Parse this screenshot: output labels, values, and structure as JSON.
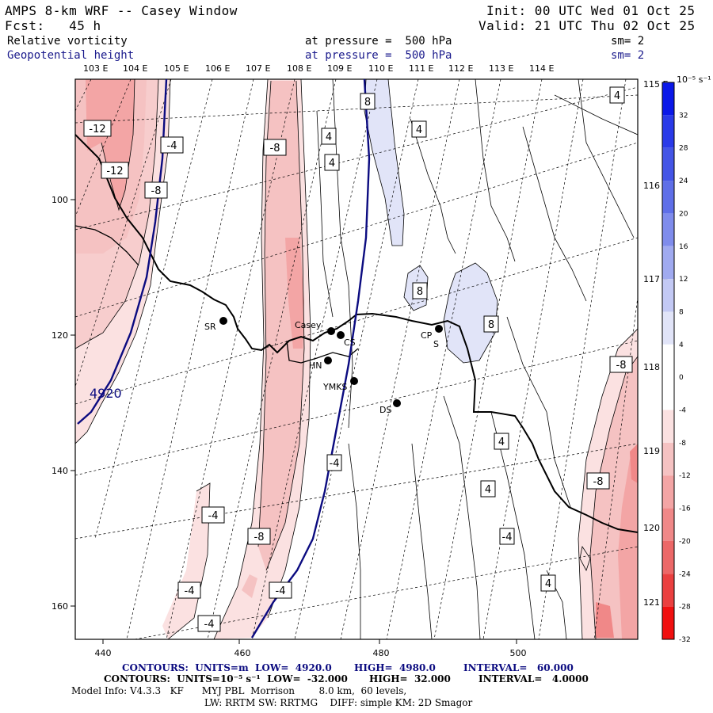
{
  "header": {
    "title": "AMPS 8-km WRF -- Casey Window",
    "init": "Init: 00 UTC Wed 01 Oct 25",
    "fcst": "Fcst:   45 h",
    "valid": "Valid: 21 UTC Thu 02 Oct 25",
    "field1_name": "Relative vorticity",
    "field1_level": "at pressure =  500 hPa",
    "field1_sm": "sm= 2",
    "field2_name": "Geopotential height",
    "field2_level": "at pressure =  500 hPa",
    "field2_sm": "sm= 2"
  },
  "map": {
    "top_longitudes": [
      "103 E",
      "104 E",
      "105 E",
      "106 E",
      "107 E",
      "108 E",
      "109 E",
      "110 E",
      "111 E",
      "112 E",
      "113 E",
      "114 E"
    ],
    "right_latitudes": [
      "115 E",
      "116 E",
      "117 E",
      "118 E",
      "119 E",
      "120 E",
      "121 E"
    ],
    "x_ticks": [
      "440",
      "460",
      "480",
      "500"
    ],
    "y_ticks": [
      "100",
      "120",
      "140",
      "160"
    ],
    "height_contour_label": "4920",
    "vorticity_labels": [
      "-12",
      "-12",
      "-4",
      "-8",
      "-8",
      "-4",
      "-4",
      "8",
      "4",
      "8",
      "8",
      "-8",
      "-8",
      "4",
      "4",
      "4",
      "4",
      "4",
      "-4",
      "-8",
      "-4",
      "-4",
      "-4",
      "4"
    ],
    "stations": [
      "SR",
      "Casey",
      "CS",
      "HN",
      "YMKS",
      "CP",
      "S",
      "DS"
    ]
  },
  "colorbar": {
    "unit": "10⁻⁵ s⁻¹",
    "levels": [
      "32",
      "28",
      "24",
      "20",
      "16",
      "12",
      "8",
      "4",
      "0",
      "-4",
      "-8",
      "-12",
      "-16",
      "-20",
      "-24",
      "-28",
      "-32"
    ],
    "colors": [
      "#0a18e8",
      "#2a3ae8",
      "#4455e6",
      "#5f6fe8",
      "#7f8cec",
      "#a0aaf0",
      "#c3c9f4",
      "#e1e4f8",
      "#ffffff",
      "#ffffff",
      "#fbe1e1",
      "#f5c2c2",
      "#f3a5a5",
      "#f08888",
      "#ec6868",
      "#ea4040",
      "#f01010"
    ]
  },
  "footer": {
    "line1_contours": "CONTOURS:  UNITS=m  LOW=  4920.0",
    "line1_high": "HIGH=  4980.0",
    "line1_interval": "INTERVAL=   60.000",
    "line2_contours": "CONTOURS:  UNITS=10⁻⁵ s⁻¹  LOW=  -32.000",
    "line2_high": "HIGH=  32.000",
    "line2_interval": "INTERVAL=   4.0000",
    "line3": "Model Info: V4.3.3   KF      MYJ PBL  Morrison        8.0 km,  60 levels,",
    "line4": "LW: RRTM SW: RRTMG    DIFF: simple KM: 2D Smagor"
  }
}
